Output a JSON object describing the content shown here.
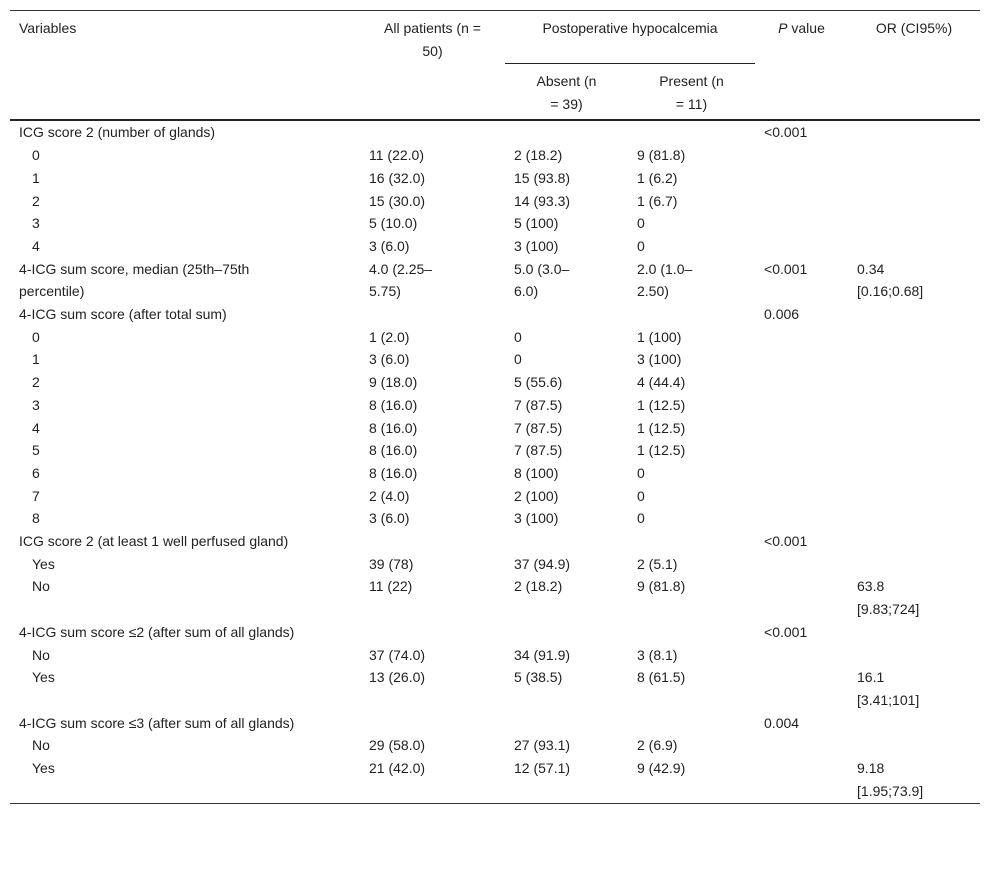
{
  "header": {
    "variables": "Variables",
    "all_patients": "All patients (n = 50)",
    "postop": "Postoperative hypocalcemia",
    "p_value_italic": "P",
    "p_value_rest": "value",
    "or": "OR (CI95%)",
    "absent": "Absent (n = 39)",
    "present": "Present (n = 11)"
  },
  "table": {
    "groups": [
      {
        "label": "ICG score 2 (number of glands)",
        "p": "<0.001",
        "items": [
          {
            "label": "0",
            "all": "11 (22.0)",
            "absent": "2 (18.2)",
            "present": "9 (81.8)"
          },
          {
            "label": "1",
            "all": "16 (32.0)",
            "absent": "15 (93.8)",
            "present": "1 (6.2)"
          },
          {
            "label": "2",
            "all": "15 (30.0)",
            "absent": "14 (93.3)",
            "present": "1 (6.7)"
          },
          {
            "label": "3",
            "all": "5 (10.0)",
            "absent": "5 (100)",
            "present": "0"
          },
          {
            "label": "4",
            "all": "3 (6.0)",
            "absent": "3 (100)",
            "present": "0"
          }
        ]
      },
      {
        "label": "4-ICG sum score, median (25th–75th percentile)",
        "all": "4.0 (2.25–5.75)",
        "absent": "5.0 (3.0–6.0)",
        "present": "2.0 (1.0–2.50)",
        "p": "<0.001",
        "or": "0.34 [0.16;0.68]"
      },
      {
        "label": "4-ICG sum score (after total sum)",
        "p": "0.006",
        "items": [
          {
            "label": "0",
            "all": "1 (2.0)",
            "absent": "0",
            "present": "1 (100)"
          },
          {
            "label": "1",
            "all": "3 (6.0)",
            "absent": "0",
            "present": "3 (100)"
          },
          {
            "label": "2",
            "all": "9 (18.0)",
            "absent": "5 (55.6)",
            "present": "4 (44.4)"
          },
          {
            "label": "3",
            "all": "8 (16.0)",
            "absent": "7 (87.5)",
            "present": "1 (12.5)"
          },
          {
            "label": "4",
            "all": "8 (16.0)",
            "absent": "7 (87.5)",
            "present": "1 (12.5)"
          },
          {
            "label": "5",
            "all": "8 (16.0)",
            "absent": "7 (87.5)",
            "present": "1 (12.5)"
          },
          {
            "label": "6",
            "all": "8 (16.0)",
            "absent": "8 (100)",
            "present": "0"
          },
          {
            "label": "7",
            "all": "2 (4.0)",
            "absent": "2 (100)",
            "present": "0"
          },
          {
            "label": "8",
            "all": "3 (6.0)",
            "absent": "3 (100)",
            "present": "0"
          }
        ]
      },
      {
        "label": "ICG score 2 (at least 1 well perfused gland)",
        "p": "<0.001",
        "items": [
          {
            "label": "Yes",
            "all": "39 (78)",
            "absent": "37 (94.9)",
            "present": "2 (5.1)"
          },
          {
            "label": "No",
            "all": "11 (22)",
            "absent": "2 (18.2)",
            "present": "9 (81.8)",
            "or": "63.8 [9.83;724]"
          }
        ]
      },
      {
        "label": "4-ICG sum score ≤2 (after sum of all glands)",
        "p": "<0.001",
        "items": [
          {
            "label": "No",
            "all": "37 (74.0)",
            "absent": "34 (91.9)",
            "present": "3 (8.1)"
          },
          {
            "label": "Yes",
            "all": "13 (26.0)",
            "absent": "5 (38.5)",
            "present": "8 (61.5)",
            "or": "16.1 [3.41;101]"
          }
        ]
      },
      {
        "label": "4-ICG sum score ≤3 (after sum of all glands)",
        "p": "0.004",
        "items": [
          {
            "label": "No",
            "all": "29 (58.0)",
            "absent": "27 (93.1)",
            "present": "2 (6.9)"
          },
          {
            "label": "Yes",
            "all": "21 (42.0)",
            "absent": "12 (57.1)",
            "present": "9 (42.9)",
            "or": "9.18 [1.95;73.9]"
          }
        ]
      }
    ]
  }
}
